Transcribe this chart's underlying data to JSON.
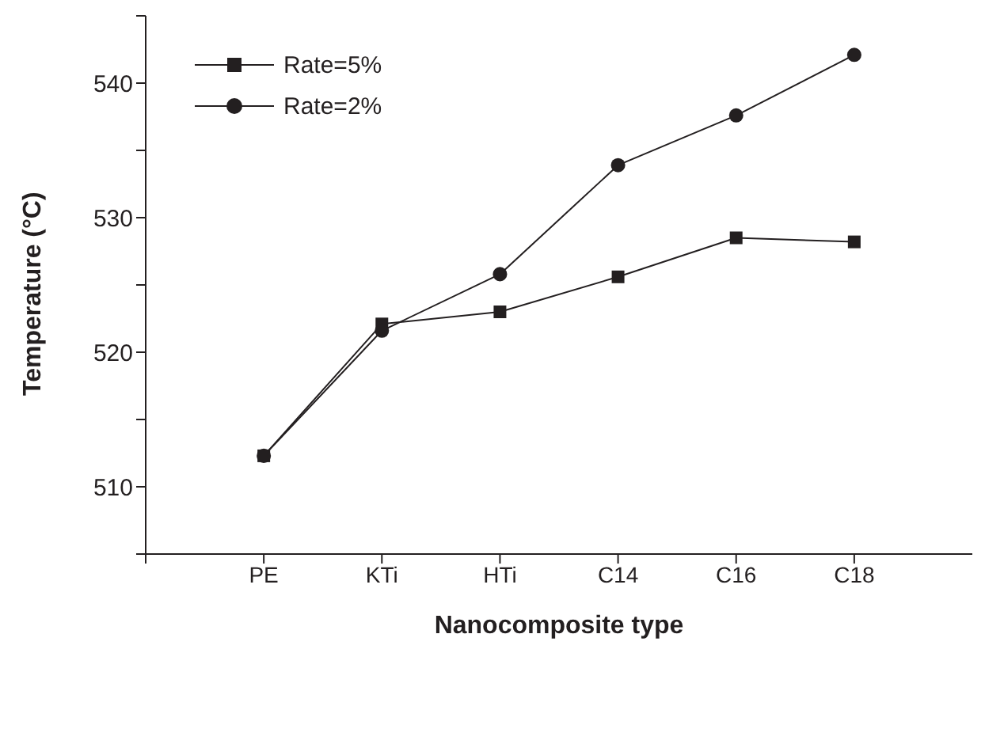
{
  "chart_data": {
    "type": "line",
    "xlabel": "Nanocomposite type",
    "ylabel": "Temperature (°C)",
    "categories": [
      "PE",
      "KTi",
      "HTi",
      "C14",
      "C16",
      "C18"
    ],
    "series": [
      {
        "name": "Rate=5%",
        "color": "#231f20",
        "marker": "square",
        "values": [
          512.3,
          522.1,
          523.0,
          525.6,
          528.5,
          528.2
        ]
      },
      {
        "name": "Rate=2%",
        "color": "#231f20",
        "marker": "circle",
        "values": [
          512.3,
          521.6,
          525.8,
          533.9,
          537.6,
          542.1
        ]
      }
    ],
    "ylim": [
      505,
      545
    ],
    "yticks": [
      {
        "value": 505,
        "label": null
      },
      510,
      {
        "value": 515,
        "label": null
      },
      520,
      {
        "value": 525,
        "label": null
      },
      530,
      {
        "value": 535,
        "label": null
      },
      540,
      {
        "value": 545,
        "label": null
      }
    ],
    "grid": false,
    "legend": "top left",
    "line_style": "solid"
  }
}
